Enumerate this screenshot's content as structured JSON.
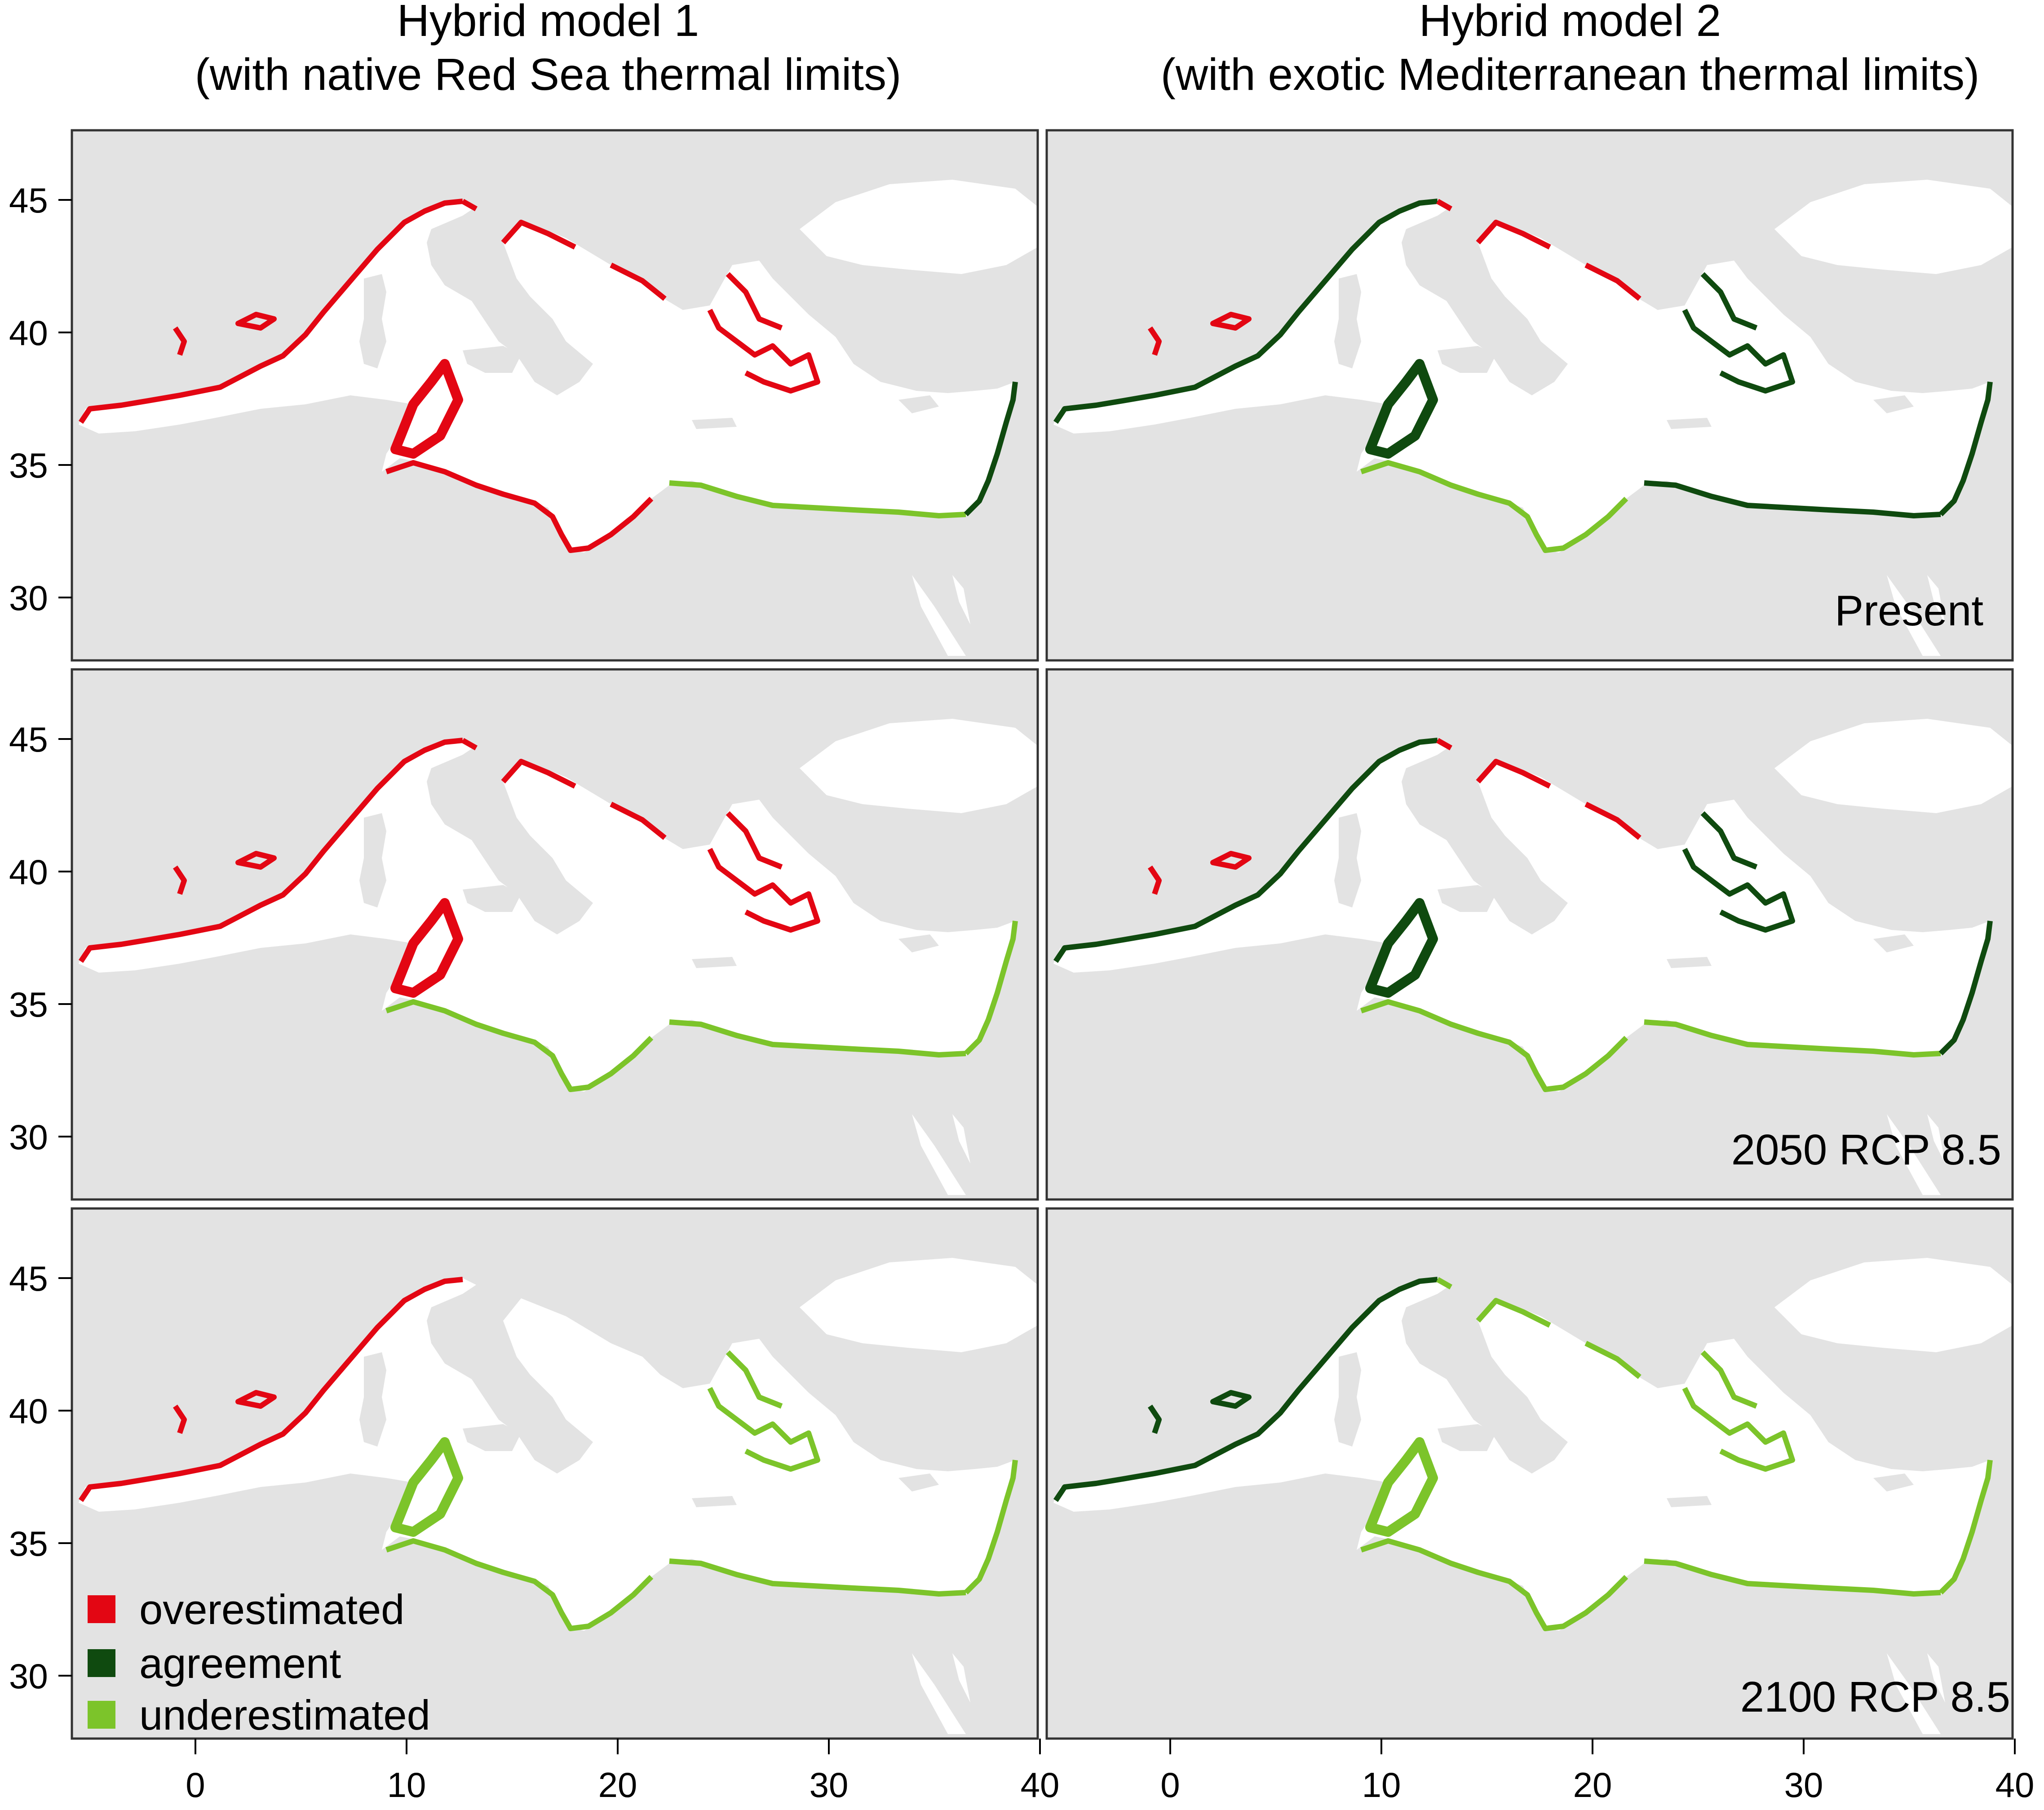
{
  "columns": [
    {
      "title_line1": "Hybrid model 1",
      "title_line2": "(with native Red Sea thermal limits)"
    },
    {
      "title_line1": "Hybrid model 2",
      "title_line2": "(with exotic Mediterranean thermal limits)"
    }
  ],
  "rows": [
    {
      "label": "Present"
    },
    {
      "label": "2050 RCP 8.5"
    },
    {
      "label": "2100 RCP 8.5"
    }
  ],
  "x_ticks": [
    "0",
    "10",
    "20",
    "30",
    "40"
  ],
  "y_ticks": [
    "45",
    "40",
    "35",
    "30"
  ],
  "legend": [
    {
      "label": "overestimated",
      "color": "#e30613"
    },
    {
      "label": "agreement",
      "color": "#0f4a0f"
    },
    {
      "label": "underestimated",
      "color": "#7cc42a"
    }
  ],
  "colors": {
    "land": "#e3e3e3",
    "sea": "#ffffff",
    "overestimated": "#e30613",
    "agreement": "#0f4a0f",
    "underestimated": "#7cc42a"
  },
  "panels": [
    {
      "id": "m1-present",
      "coast": {
        "west": "over",
        "sicily": "over",
        "libya": "over",
        "egypt": "under",
        "levant": "agree",
        "aegean": "over",
        "n_adriatic": "over",
        "balearic": "over"
      }
    },
    {
      "id": "m2-present",
      "coast": {
        "west": "agree",
        "sicily": "agree",
        "libya": "under",
        "egypt": "agree",
        "levant": "agree",
        "aegean": "agree",
        "n_adriatic": "over",
        "balearic": "over"
      }
    },
    {
      "id": "m1-2050",
      "coast": {
        "west": "over",
        "sicily": "over",
        "libya": "under",
        "egypt": "under",
        "levant": "under",
        "aegean": "over",
        "n_adriatic": "over",
        "balearic": "over"
      }
    },
    {
      "id": "m2-2050",
      "coast": {
        "west": "agree",
        "sicily": "agree",
        "libya": "under",
        "egypt": "under",
        "levant": "agree",
        "aegean": "agree",
        "n_adriatic": "over",
        "balearic": "over"
      }
    },
    {
      "id": "m1-2100",
      "coast": {
        "west": "over",
        "sicily": "under",
        "libya": "under",
        "egypt": "under",
        "levant": "under",
        "aegean": "under",
        "n_adriatic": "none",
        "balearic": "over"
      }
    },
    {
      "id": "m2-2100",
      "coast": {
        "west": "agree",
        "sicily": "under",
        "libya": "under",
        "egypt": "under",
        "levant": "under",
        "aegean": "under",
        "n_adriatic": "under",
        "balearic": "agree"
      }
    }
  ]
}
